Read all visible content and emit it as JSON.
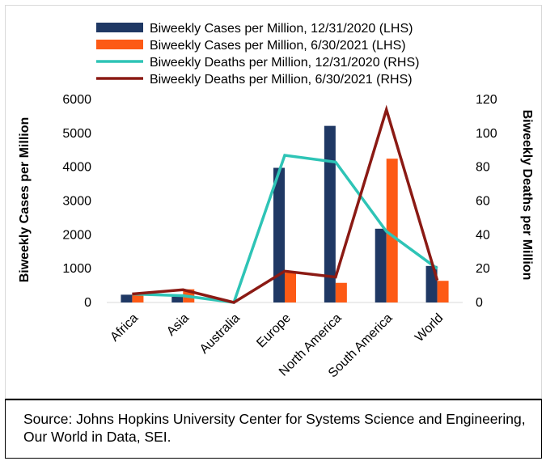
{
  "chart_data": {
    "type": "bar",
    "categories": [
      "Africa",
      "Asia",
      "Australia",
      "Europe",
      "North America",
      "South America",
      "World"
    ],
    "series": [
      {
        "name": "Biweekly Cases per Million, 12/31/2020 (LHS)",
        "kind": "bar",
        "axis": "left",
        "color": "#1f3864",
        "values": [
          230,
          170,
          0,
          3980,
          5220,
          2180,
          1080
        ]
      },
      {
        "name": "Biweekly Cases per Million, 6/30/2021 (LHS)",
        "kind": "bar",
        "axis": "left",
        "color": "#fd5a15",
        "values": [
          250,
          390,
          0,
          880,
          580,
          4250,
          640
        ]
      },
      {
        "name": "Biweekly Deaths per Million, 12/31/2020 (RHS)",
        "kind": "line",
        "axis": "right",
        "color": "#2ec4b6",
        "values": [
          5,
          4,
          0,
          87,
          83,
          42,
          20
        ]
      },
      {
        "name": "Biweekly Deaths per Million, 6/30/2021 (RHS)",
        "kind": "line",
        "axis": "right",
        "color": "#8b1a14",
        "values": [
          5,
          7.5,
          0,
          18.5,
          15,
          114,
          13
        ]
      }
    ],
    "ylabel": "Biweekly Cases per Million",
    "y2label": "Biweekly Deaths per Million",
    "ylim": [
      0,
      6000
    ],
    "y2lim": [
      0,
      120
    ],
    "yticks": [
      "0",
      "1000",
      "2000",
      "3000",
      "4000",
      "5000",
      "6000"
    ],
    "y2ticks": [
      "0",
      "20",
      "40",
      "60",
      "80",
      "100",
      "120"
    ],
    "grid": false,
    "legend_position": "top"
  },
  "source": "Source: Johns Hopkins University Center for Systems Science and Engineering, Our World in Data, SEI."
}
